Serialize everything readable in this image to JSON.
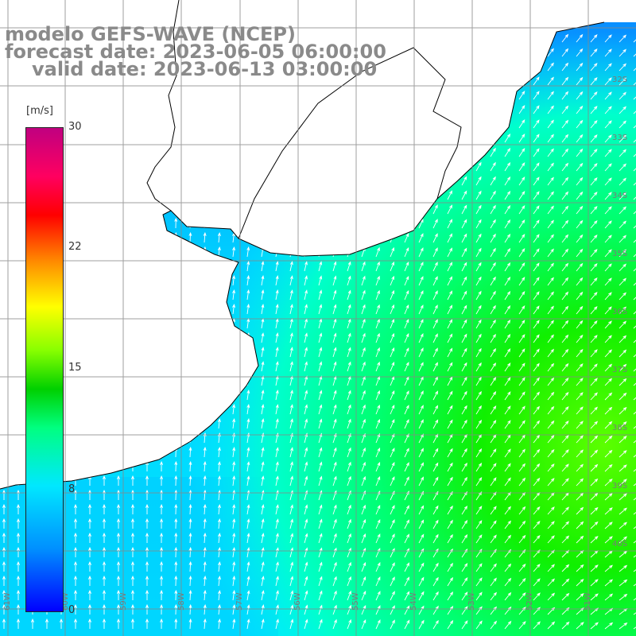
{
  "title": {
    "line1": "modelo GEFS-WAVE (NCEP)",
    "line2": "forecast date: 2023-06-05 06:00:00",
    "line3": "valid date: 2023-06-13 03:00:00"
  },
  "colorbar": {
    "unit": "[m/s]",
    "ticks": [
      "30",
      "22",
      "15",
      "8",
      "0"
    ],
    "colors": [
      "#0000ff",
      "#0090ff",
      "#00e8ff",
      "#00ff80",
      "#00d000",
      "#88ff00",
      "#ffff00",
      "#ff9000",
      "#ff0000",
      "#c00080"
    ]
  },
  "map": {
    "lat_labels": [
      "32S",
      "33S",
      "34S",
      "35S",
      "36S",
      "37S",
      "38S",
      "39S",
      "40S"
    ],
    "lon_labels": [
      "61W",
      "60W",
      "59W",
      "58W",
      "57W",
      "56W",
      "55W",
      "54W",
      "53W",
      "52W",
      "51W"
    ],
    "ocean_color": "#00e8ff",
    "land_color": "#ffffff"
  }
}
